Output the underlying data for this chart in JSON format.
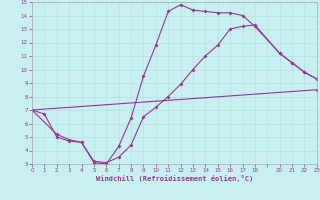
{
  "xlabel": "Windchill (Refroidissement éolien,°C)",
  "bg_color": "#c8f0f0",
  "line_color": "#993399",
  "grid_color": "#b0dede",
  "xlim": [
    0,
    23
  ],
  "ylim": [
    3,
    15
  ],
  "xticks": [
    0,
    1,
    2,
    3,
    4,
    5,
    6,
    7,
    8,
    9,
    10,
    11,
    12,
    13,
    14,
    15,
    16,
    17,
    18,
    19,
    20,
    21,
    22,
    23
  ],
  "xtick_labels": [
    "0",
    "1",
    "2",
    "3",
    "4",
    "5",
    "6",
    "7",
    "8",
    "9",
    "10",
    "11",
    "12",
    "13",
    "14",
    "15",
    "16",
    "17",
    "18",
    "",
    "20",
    "21",
    "22",
    "23"
  ],
  "yticks": [
    3,
    4,
    5,
    6,
    7,
    8,
    9,
    10,
    11,
    12,
    13,
    14,
    15
  ],
  "line1_x": [
    0,
    1,
    2,
    3,
    4,
    5,
    6,
    7,
    8,
    9,
    10,
    11,
    12,
    13,
    14,
    15,
    16,
    17,
    18,
    20,
    21,
    22,
    23
  ],
  "line1_y": [
    7.0,
    6.7,
    5.0,
    4.7,
    4.6,
    3.1,
    3.0,
    4.3,
    6.4,
    9.5,
    11.8,
    14.3,
    14.8,
    14.4,
    14.3,
    14.2,
    14.2,
    14.0,
    13.2,
    11.2,
    10.5,
    9.8,
    9.3
  ],
  "line2_x": [
    0,
    2,
    3,
    4,
    5,
    6,
    7,
    8,
    9,
    10,
    11,
    12,
    13,
    14,
    15,
    16,
    17,
    18,
    20,
    21,
    22,
    23
  ],
  "line2_y": [
    7.0,
    5.2,
    4.8,
    4.6,
    3.2,
    3.1,
    3.5,
    4.4,
    6.5,
    7.2,
    8.0,
    8.9,
    10.0,
    11.0,
    11.8,
    13.0,
    13.2,
    13.3,
    11.2,
    10.5,
    9.8,
    9.3
  ],
  "line3_x": [
    0,
    23
  ],
  "line3_y": [
    7.0,
    8.5
  ]
}
